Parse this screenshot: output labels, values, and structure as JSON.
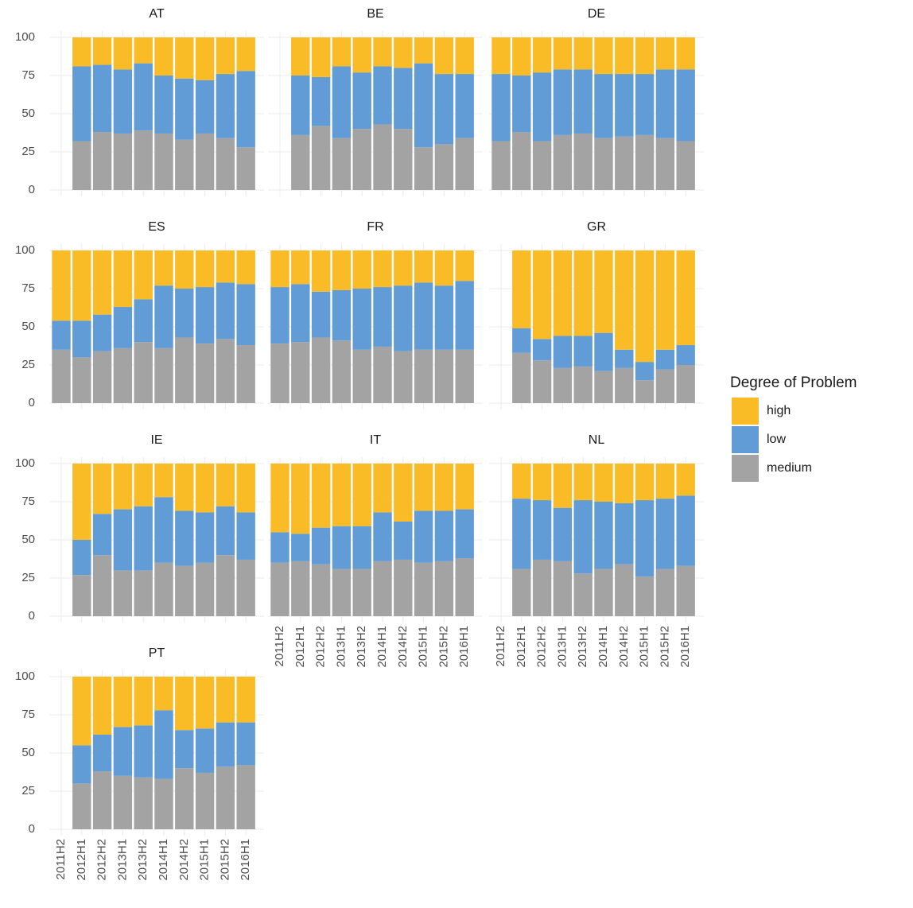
{
  "chart_data": [
    {
      "type": "bar",
      "title": "AT",
      "stacked": true,
      "categories": [
        "2011H2",
        "2012H1",
        "2012H2",
        "2013H1",
        "2013H2",
        "2014H1",
        "2014H2",
        "2015H1",
        "2015H2",
        "2016H1"
      ],
      "ylim": [
        0,
        100
      ],
      "yticks": [
        0,
        25,
        50,
        75,
        100
      ],
      "grid": true,
      "series": [
        {
          "name": "high",
          "color": "#f9bb26",
          "values": [
            null,
            19,
            18,
            21,
            17,
            25,
            27,
            28,
            24,
            22
          ]
        },
        {
          "name": "low",
          "color": "#629cd6",
          "values": [
            null,
            49,
            44,
            42,
            44,
            38,
            40,
            35,
            42,
            50
          ]
        },
        {
          "name": "medium",
          "color": "#a3a3a3",
          "values": [
            null,
            32,
            38,
            37,
            39,
            37,
            33,
            37,
            34,
            28
          ]
        }
      ]
    },
    {
      "type": "bar",
      "title": "BE",
      "stacked": true,
      "categories": [
        "2011H2",
        "2012H1",
        "2012H2",
        "2013H1",
        "2013H2",
        "2014H1",
        "2014H2",
        "2015H1",
        "2015H2",
        "2016H1"
      ],
      "ylim": [
        0,
        100
      ],
      "yticks": [
        0,
        25,
        50,
        75,
        100
      ],
      "grid": true,
      "series": [
        {
          "name": "high",
          "color": "#f9bb26",
          "values": [
            null,
            25,
            26,
            19,
            23,
            19,
            20,
            17,
            24,
            24
          ]
        },
        {
          "name": "low",
          "color": "#629cd6",
          "values": [
            null,
            39,
            32,
            47,
            37,
            38,
            40,
            55,
            46,
            42
          ]
        },
        {
          "name": "medium",
          "color": "#a3a3a3",
          "values": [
            null,
            36,
            42,
            34,
            40,
            43,
            40,
            28,
            30,
            34
          ]
        }
      ]
    },
    {
      "type": "bar",
      "title": "DE",
      "stacked": true,
      "categories": [
        "2011H2",
        "2012H1",
        "2012H2",
        "2013H1",
        "2013H2",
        "2014H1",
        "2014H2",
        "2015H1",
        "2015H2",
        "2016H1"
      ],
      "ylim": [
        0,
        100
      ],
      "yticks": [
        0,
        25,
        50,
        75,
        100
      ],
      "grid": true,
      "series": [
        {
          "name": "high",
          "color": "#f9bb26",
          "values": [
            24,
            25,
            23,
            21,
            21,
            24,
            24,
            24,
            21,
            21
          ]
        },
        {
          "name": "low",
          "color": "#629cd6",
          "values": [
            44,
            37,
            45,
            43,
            42,
            42,
            41,
            40,
            45,
            47
          ]
        },
        {
          "name": "medium",
          "color": "#a3a3a3",
          "values": [
            32,
            38,
            32,
            36,
            37,
            34,
            35,
            36,
            34,
            32
          ]
        }
      ]
    },
    {
      "type": "bar",
      "title": "ES",
      "stacked": true,
      "categories": [
        "2011H2",
        "2012H1",
        "2012H2",
        "2013H1",
        "2013H2",
        "2014H1",
        "2014H2",
        "2015H1",
        "2015H2",
        "2016H1"
      ],
      "ylim": [
        0,
        100
      ],
      "yticks": [
        0,
        25,
        50,
        75,
        100
      ],
      "grid": true,
      "series": [
        {
          "name": "high",
          "color": "#f9bb26",
          "values": [
            46,
            46,
            42,
            37,
            32,
            23,
            25,
            24,
            21,
            22
          ]
        },
        {
          "name": "low",
          "color": "#629cd6",
          "values": [
            19,
            24,
            24,
            27,
            28,
            41,
            32,
            37,
            37,
            40
          ]
        },
        {
          "name": "medium",
          "color": "#a3a3a3",
          "values": [
            35,
            30,
            34,
            36,
            40,
            36,
            43,
            39,
            42,
            38
          ]
        }
      ]
    },
    {
      "type": "bar",
      "title": "FR",
      "stacked": true,
      "categories": [
        "2011H2",
        "2012H1",
        "2012H2",
        "2013H1",
        "2013H2",
        "2014H1",
        "2014H2",
        "2015H1",
        "2015H2",
        "2016H1"
      ],
      "ylim": [
        0,
        100
      ],
      "yticks": [
        0,
        25,
        50,
        75,
        100
      ],
      "grid": true,
      "series": [
        {
          "name": "high",
          "color": "#f9bb26",
          "values": [
            24,
            22,
            27,
            26,
            25,
            24,
            23,
            21,
            23,
            20
          ]
        },
        {
          "name": "low",
          "color": "#629cd6",
          "values": [
            37,
            38,
            30,
            33,
            40,
            39,
            43,
            44,
            42,
            45
          ]
        },
        {
          "name": "medium",
          "color": "#a3a3a3",
          "values": [
            39,
            40,
            43,
            41,
            35,
            37,
            34,
            35,
            35,
            35
          ]
        }
      ]
    },
    {
      "type": "bar",
      "title": "GR",
      "stacked": true,
      "categories": [
        "2011H2",
        "2012H1",
        "2012H2",
        "2013H1",
        "2013H2",
        "2014H1",
        "2014H2",
        "2015H1",
        "2015H2",
        "2016H1"
      ],
      "ylim": [
        0,
        100
      ],
      "yticks": [
        0,
        25,
        50,
        75,
        100
      ],
      "grid": true,
      "series": [
        {
          "name": "high",
          "color": "#f9bb26",
          "values": [
            null,
            51,
            58,
            56,
            56,
            54,
            65,
            73,
            65,
            62
          ]
        },
        {
          "name": "low",
          "color": "#629cd6",
          "values": [
            null,
            16,
            14,
            21,
            20,
            25,
            12,
            12,
            13,
            13
          ]
        },
        {
          "name": "medium",
          "color": "#a3a3a3",
          "values": [
            null,
            33,
            28,
            23,
            24,
            21,
            23,
            15,
            22,
            25
          ]
        }
      ]
    },
    {
      "type": "bar",
      "title": "IE",
      "stacked": true,
      "categories": [
        "2011H2",
        "2012H1",
        "2012H2",
        "2013H1",
        "2013H2",
        "2014H1",
        "2014H2",
        "2015H1",
        "2015H2",
        "2016H1"
      ],
      "ylim": [
        0,
        100
      ],
      "yticks": [
        0,
        25,
        50,
        75,
        100
      ],
      "grid": true,
      "series": [
        {
          "name": "high",
          "color": "#f9bb26",
          "values": [
            null,
            50,
            33,
            30,
            28,
            22,
            31,
            32,
            28,
            32
          ]
        },
        {
          "name": "low",
          "color": "#629cd6",
          "values": [
            null,
            23,
            27,
            40,
            42,
            43,
            36,
            33,
            32,
            31
          ]
        },
        {
          "name": "medium",
          "color": "#a3a3a3",
          "values": [
            null,
            27,
            40,
            30,
            30,
            35,
            33,
            35,
            40,
            37
          ]
        }
      ]
    },
    {
      "type": "bar",
      "title": "IT",
      "stacked": true,
      "categories": [
        "2011H2",
        "2012H1",
        "2012H2",
        "2013H1",
        "2013H2",
        "2014H1",
        "2014H2",
        "2015H1",
        "2015H2",
        "2016H1"
      ],
      "ylim": [
        0,
        100
      ],
      "yticks": [
        0,
        25,
        50,
        75,
        100
      ],
      "grid": true,
      "series": [
        {
          "name": "high",
          "color": "#f9bb26",
          "values": [
            45,
            46,
            42,
            41,
            41,
            32,
            38,
            31,
            31,
            30
          ]
        },
        {
          "name": "low",
          "color": "#629cd6",
          "values": [
            20,
            18,
            24,
            28,
            28,
            32,
            25,
            34,
            33,
            32
          ]
        },
        {
          "name": "medium",
          "color": "#a3a3a3",
          "values": [
            35,
            36,
            34,
            31,
            31,
            36,
            37,
            35,
            36,
            38
          ]
        }
      ]
    },
    {
      "type": "bar",
      "title": "NL",
      "stacked": true,
      "categories": [
        "2011H2",
        "2012H1",
        "2012H2",
        "2013H1",
        "2013H2",
        "2014H1",
        "2014H2",
        "2015H1",
        "2015H2",
        "2016H1"
      ],
      "ylim": [
        0,
        100
      ],
      "yticks": [
        0,
        25,
        50,
        75,
        100
      ],
      "grid": true,
      "series": [
        {
          "name": "high",
          "color": "#f9bb26",
          "values": [
            null,
            23,
            24,
            29,
            24,
            25,
            26,
            24,
            23,
            21
          ]
        },
        {
          "name": "low",
          "color": "#629cd6",
          "values": [
            null,
            46,
            39,
            35,
            48,
            44,
            40,
            50,
            46,
            46
          ]
        },
        {
          "name": "medium",
          "color": "#a3a3a3",
          "values": [
            null,
            31,
            37,
            36,
            28,
            31,
            34,
            26,
            31,
            33
          ]
        }
      ]
    },
    {
      "type": "bar",
      "title": "PT",
      "stacked": true,
      "categories": [
        "2011H2",
        "2012H1",
        "2012H2",
        "2013H1",
        "2013H2",
        "2014H1",
        "2014H2",
        "2015H1",
        "2015H2",
        "2016H1"
      ],
      "ylim": [
        0,
        100
      ],
      "yticks": [
        0,
        25,
        50,
        75,
        100
      ],
      "grid": true,
      "series": [
        {
          "name": "high",
          "color": "#f9bb26",
          "values": [
            null,
            45,
            38,
            33,
            32,
            22,
            35,
            34,
            30,
            30
          ]
        },
        {
          "name": "low",
          "color": "#629cd6",
          "values": [
            null,
            25,
            24,
            32,
            34,
            45,
            25,
            29,
            29,
            28
          ]
        },
        {
          "name": "medium",
          "color": "#a3a3a3",
          "values": [
            null,
            30,
            38,
            35,
            34,
            33,
            40,
            37,
            41,
            42
          ]
        }
      ]
    }
  ],
  "legend": {
    "title": "Degree of Problem"
  }
}
